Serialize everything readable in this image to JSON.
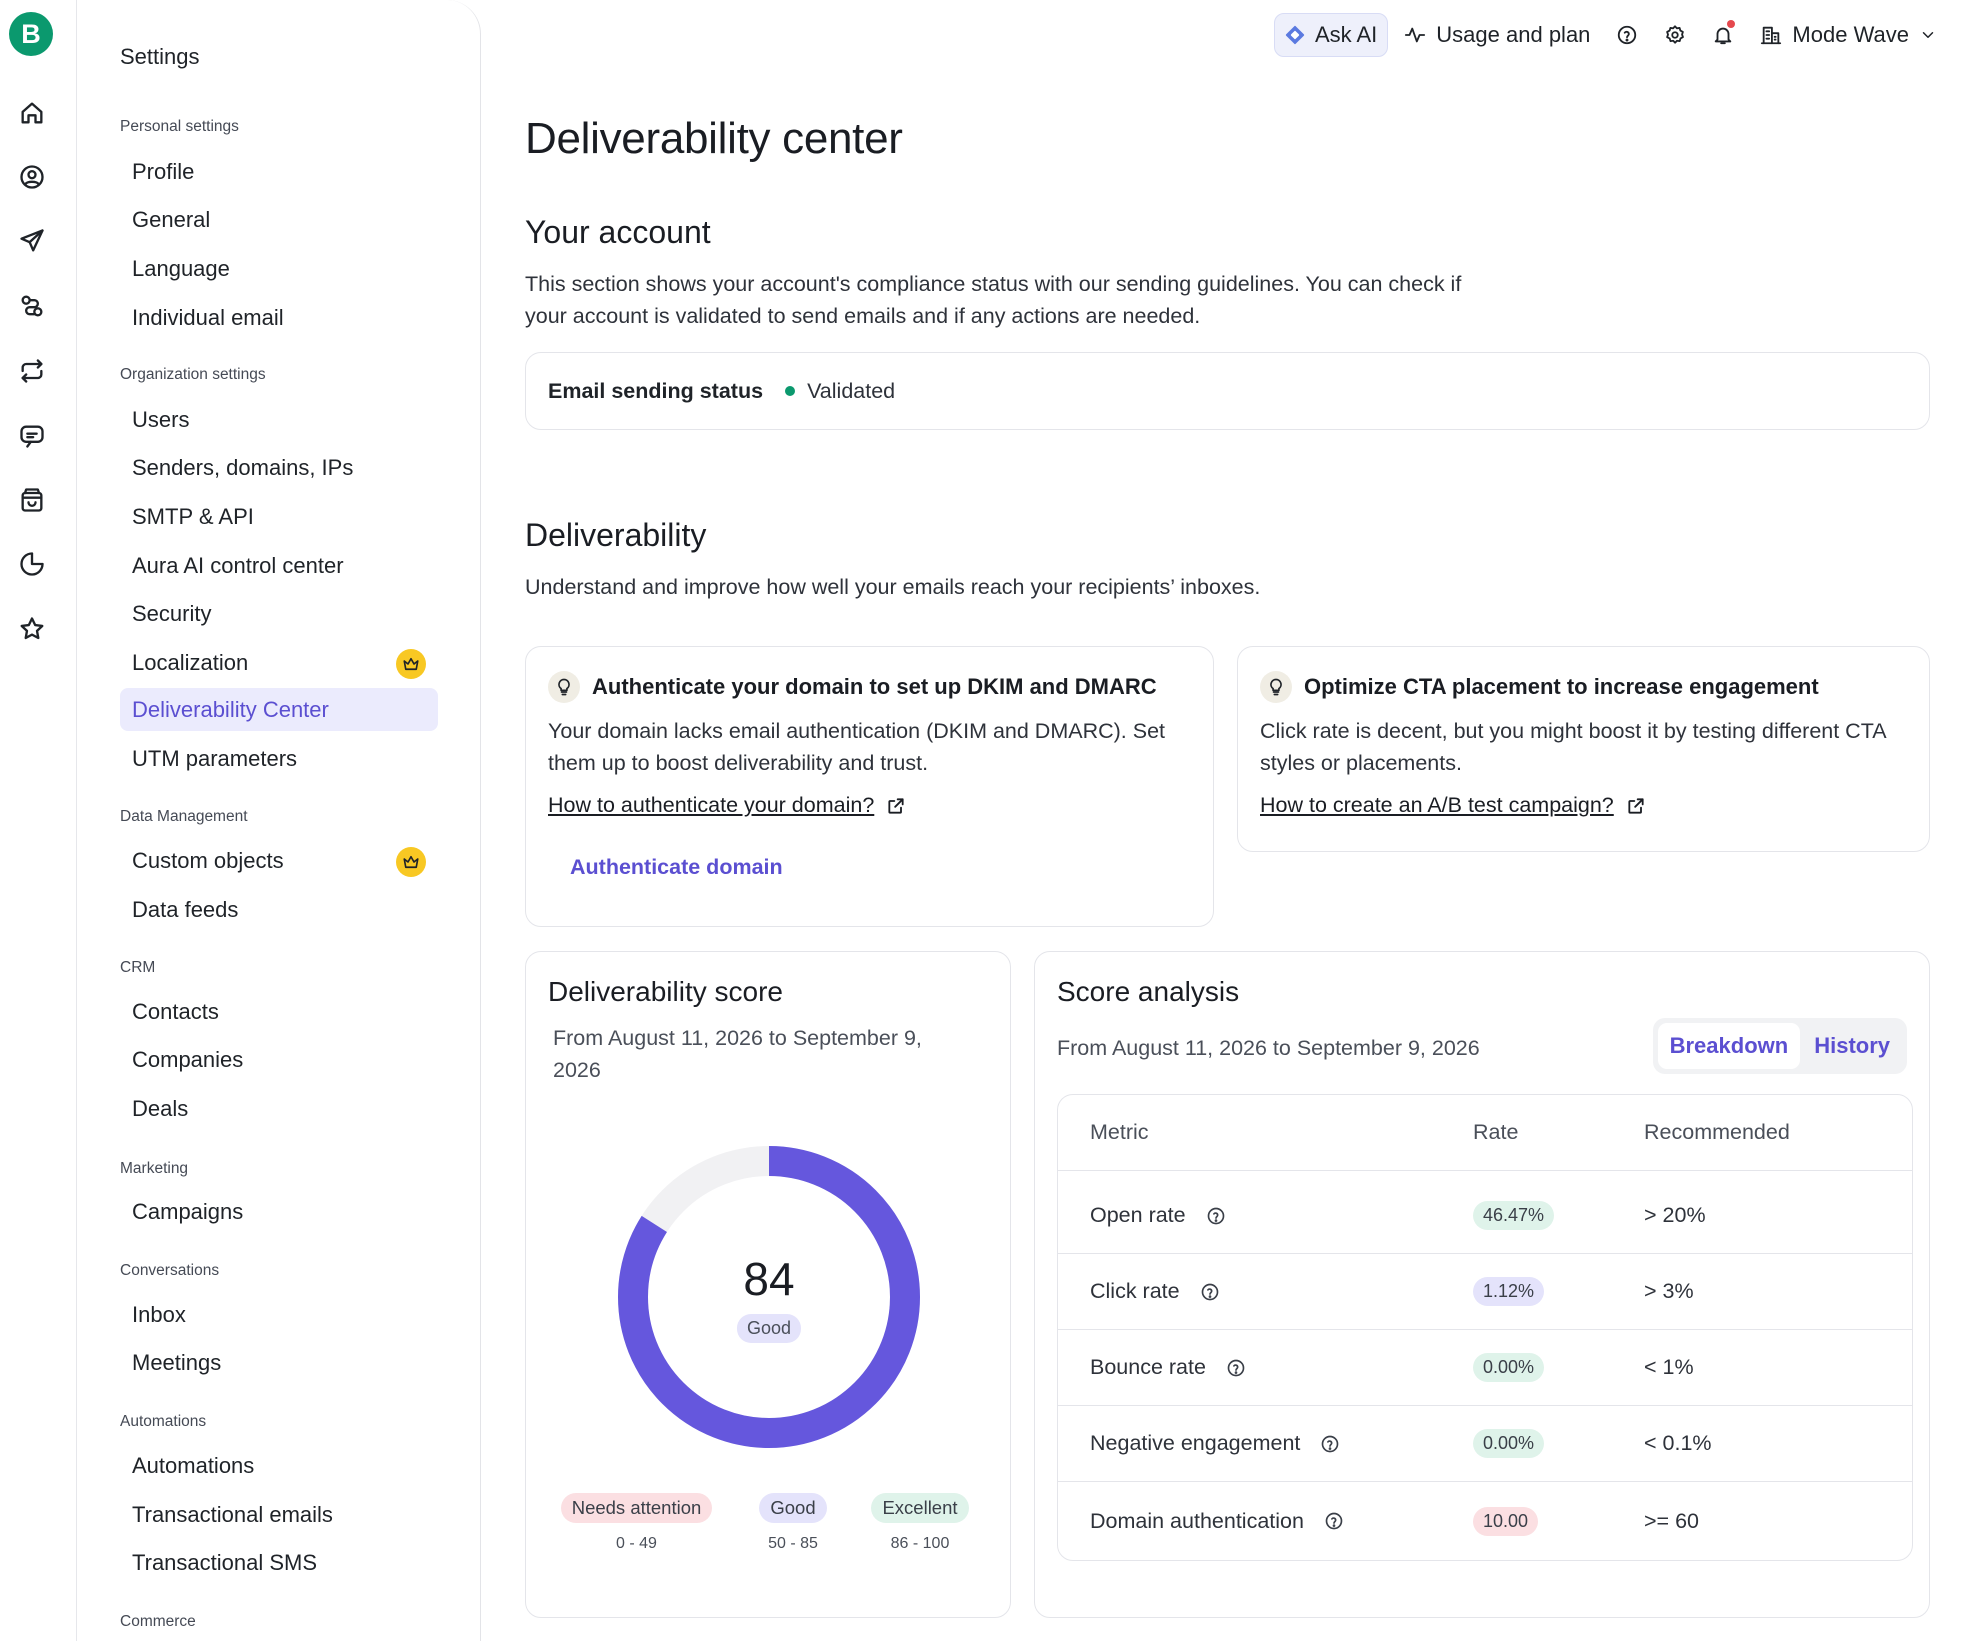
{
  "rail": {
    "logo": "B",
    "icons": [
      "home-icon",
      "contacts-icon",
      "send-icon",
      "automation-icon",
      "transactional-icon",
      "conversations-icon",
      "commerce-icon",
      "reports-icon",
      "favorites-icon"
    ]
  },
  "sidebar": {
    "title": "Settings",
    "sections": {
      "personal": "Personal settings",
      "organization": "Organization settings",
      "data": "Data Management",
      "crm": "CRM",
      "marketing": "Marketing",
      "conversations": "Conversations",
      "automations": "Automations",
      "commerce": "Commerce"
    },
    "items": {
      "profile": "Profile",
      "general": "General",
      "language": "Language",
      "individual_email": "Individual email",
      "users": "Users",
      "senders": "Senders, domains, IPs",
      "smtp": "SMTP & API",
      "aura": "Aura AI control center",
      "security": "Security",
      "localization": "Localization",
      "deliverability": "Deliverability Center",
      "utm": "UTM parameters",
      "custom_objects": "Custom objects",
      "data_feeds": "Data feeds",
      "contacts": "Contacts",
      "companies": "Companies",
      "deals": "Deals",
      "campaigns": "Campaigns",
      "inbox": "Inbox",
      "meetings": "Meetings",
      "automations": "Automations",
      "transactional_emails": "Transactional emails",
      "transactional_sms": "Transactional SMS"
    }
  },
  "topbar": {
    "ask_ai": "Ask AI",
    "usage": "Usage and plan",
    "account": "Mode Wave"
  },
  "page": {
    "title": "Deliverability center",
    "account": {
      "heading": "Your account",
      "description": "This section shows your account's compliance status with our sending guidelines. You can check if your account is validated to send emails and if any actions are needed.",
      "status_label": "Email sending status",
      "status_value": "Validated"
    },
    "deliverability": {
      "heading": "Deliverability",
      "description": "Understand and improve how well your emails reach your recipients’ inboxes."
    },
    "tips": [
      {
        "title": "Authenticate your domain to set up DKIM and DMARC",
        "text": "Your domain lacks email authentication (DKIM and DMARC). Set them up to boost deliverability and trust.",
        "link": "How to authenticate your domain?",
        "button": "Authenticate domain"
      },
      {
        "title": "Optimize CTA placement to increase engagement",
        "text": "Click rate is decent, but you might boost it by testing different CTA styles or placements.",
        "link": "How to create an A/B test campaign?"
      }
    ],
    "score": {
      "title": "Deliverability score",
      "range": "From August 11, 2026 to September 9, 2026",
      "value": "84",
      "value_fraction": 0.84,
      "label": "Good",
      "legend": [
        {
          "label": "Needs attention",
          "range": "0 - 49",
          "color": "#fbdfe2"
        },
        {
          "label": "Good",
          "range": "50 - 85",
          "color": "#e4e3fb"
        },
        {
          "label": "Excellent",
          "range": "86 - 100",
          "color": "#dff3ea"
        }
      ]
    },
    "analysis": {
      "title": "Score analysis",
      "range": "From August 11, 2026 to September 9, 2026",
      "tabs": [
        "Breakdown",
        "History"
      ],
      "columns": [
        "Metric",
        "Rate",
        "Recommended"
      ],
      "rows": [
        {
          "metric": "Open rate",
          "rate": "46.47%",
          "recommended": "> 20%",
          "color": "#dff3ea"
        },
        {
          "metric": "Click rate",
          "rate": "1.12%",
          "recommended": "> 3%",
          "color": "#e4e3fb"
        },
        {
          "metric": "Bounce rate",
          "rate": "0.00%",
          "recommended": "< 1%",
          "color": "#dff3ea"
        },
        {
          "metric": "Negative engagement",
          "rate": "0.00%",
          "recommended": "< 0.1%",
          "color": "#dff3ea"
        },
        {
          "metric": "Domain authentication",
          "rate": "10.00",
          "recommended": ">= 60",
          "color": "#fbdfe2"
        }
      ]
    }
  }
}
